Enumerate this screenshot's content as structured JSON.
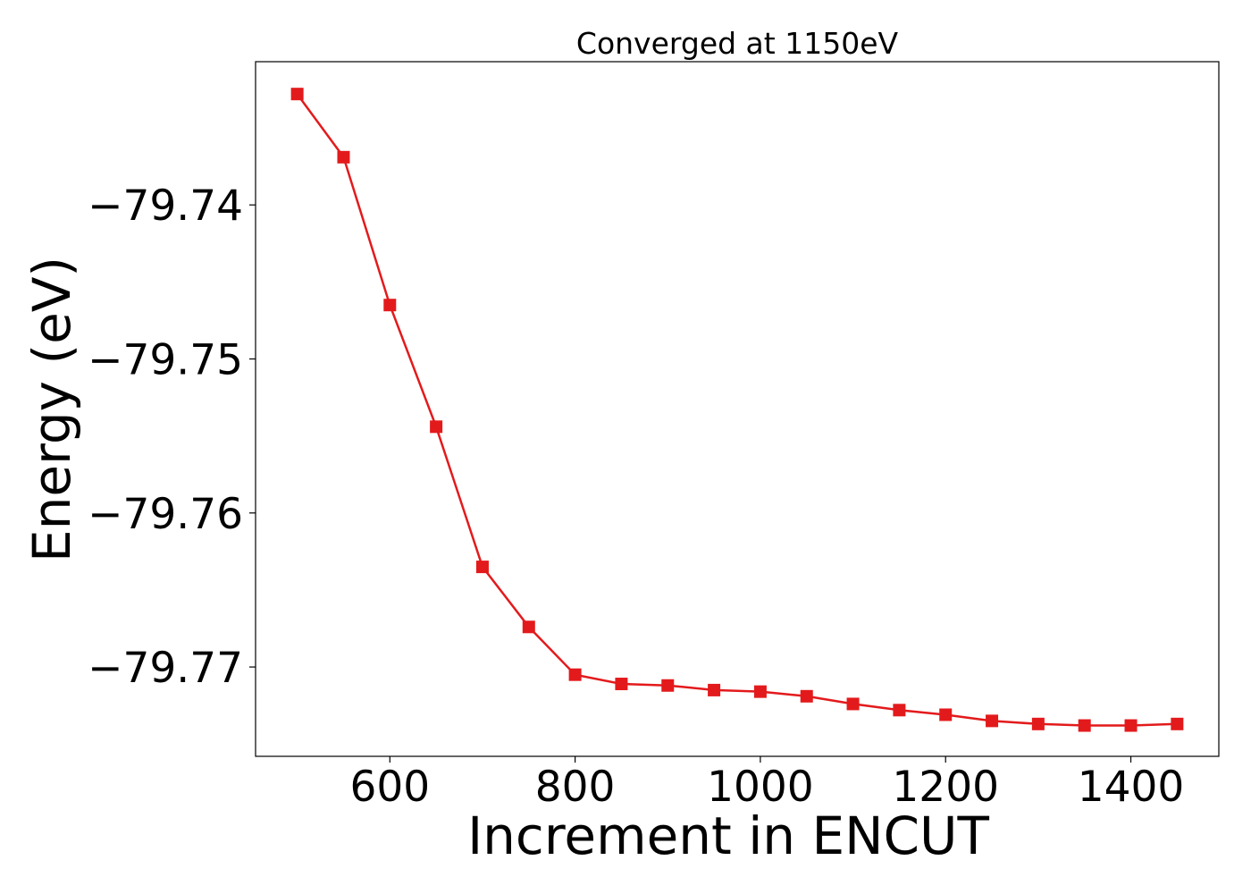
{
  "chart_data": {
    "type": "line",
    "title": "Converged at 1150eV",
    "xlabel": "Increment in ENCUT",
    "ylabel": "Energy (eV)",
    "xlim": [
      455,
      1495
    ],
    "ylim": [
      -79.7758,
      -79.7307
    ],
    "x_ticks": [
      600,
      800,
      1000,
      1200,
      1400
    ],
    "y_ticks": [
      -79.74,
      -79.75,
      -79.76,
      -79.77
    ],
    "y_tick_labels": [
      "−79.74",
      "−79.75",
      "−79.76",
      "−79.77"
    ],
    "grid": false,
    "marker": "square",
    "series": [
      {
        "color": "#e31a1c",
        "x": [
          500,
          550,
          600,
          650,
          700,
          750,
          800,
          850,
          900,
          950,
          1000,
          1050,
          1100,
          1150,
          1200,
          1250,
          1300,
          1350,
          1400,
          1450
        ],
        "y": [
          -79.7328,
          -79.7369,
          -79.7465,
          -79.7544,
          -79.7635,
          -79.7674,
          -79.7705,
          -79.7711,
          -79.7712,
          -79.7715,
          -79.7716,
          -79.7719,
          -79.7724,
          -79.7728,
          -79.7731,
          -79.7735,
          -79.7737,
          -79.7738,
          -79.7738,
          -79.7737
        ]
      }
    ]
  }
}
